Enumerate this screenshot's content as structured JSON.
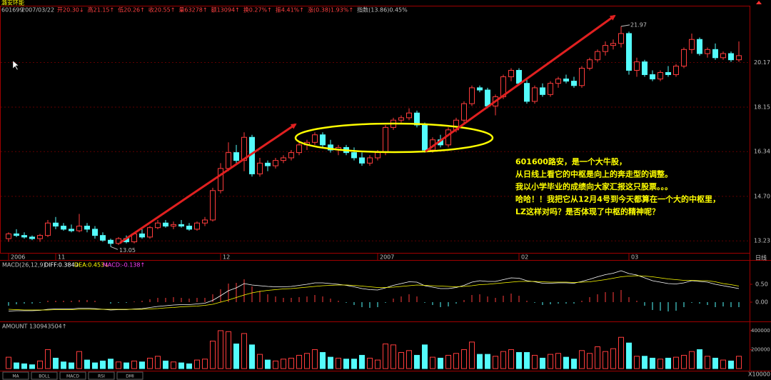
{
  "header": {
    "name": "潞安环能",
    "code": "601699",
    "date": "2007/03/22",
    "quote": [
      "开20.30↓",
      "高21.15↑",
      "低20.26↑",
      "收20.55↑",
      "量63278↑",
      "额13094↑",
      "换0.27%↑",
      "振4.41%↑",
      "涨(0.38)1.93%↑",
      "指数(13.86)0.45%"
    ]
  },
  "chart_data": {
    "type": "candlestick",
    "categories": [
      "2006",
      null,
      null,
      null,
      null,
      null,
      "11",
      null,
      null,
      null,
      null,
      null,
      null,
      null,
      null,
      null,
      null,
      null,
      null,
      null,
      null,
      null,
      null,
      null,
      null,
      null,
      null,
      "12",
      null,
      null,
      null,
      null,
      null,
      null,
      null,
      null,
      null,
      null,
      null,
      null,
      null,
      null,
      null,
      null,
      null,
      null,
      null,
      "2007",
      null,
      null,
      null,
      null,
      null,
      null,
      null,
      null,
      null,
      null,
      null,
      null,
      null,
      null,
      null,
      null,
      null,
      "02",
      null,
      null,
      null,
      null,
      null,
      null,
      null,
      null,
      null,
      null,
      null,
      null,
      null,
      "03",
      null,
      null,
      null,
      null,
      null,
      null,
      null,
      null,
      null,
      null,
      null,
      null,
      null,
      null
    ],
    "open": [
      13.3,
      13.45,
      13.4,
      13.35,
      13.3,
      13.4,
      13.8,
      13.7,
      13.6,
      13.55,
      13.7,
      13.6,
      13.4,
      13.25,
      13.15,
      13.3,
      13.2,
      13.45,
      13.35,
      13.65,
      13.8,
      13.7,
      13.75,
      13.7,
      13.6,
      13.8,
      13.9,
      14.9,
      15.7,
      16.3,
      16.0,
      16.9,
      15.5,
      15.9,
      15.8,
      16.0,
      16.1,
      16.3,
      16.6,
      16.7,
      17.0,
      16.6,
      16.4,
      16.5,
      16.3,
      16.1,
      15.9,
      16.1,
      16.3,
      17.3,
      17.6,
      17.7,
      17.9,
      17.4,
      16.4,
      16.8,
      16.6,
      17.2,
      17.6,
      18.3,
      19.0,
      18.9,
      18.2,
      18.6,
      19.5,
      19.8,
      19.2,
      18.4,
      19.0,
      18.7,
      19.2,
      19.4,
      19.3,
      19.1,
      19.9,
      20.3,
      20.7,
      21.0,
      21.1,
      21.6,
      19.8,
      20.2,
      19.6,
      19.4,
      19.7,
      19.6,
      20.0,
      20.8,
      21.3,
      20.6,
      20.8,
      20.4,
      20.6,
      20.3
    ],
    "high": [
      13.5,
      13.6,
      13.5,
      13.4,
      13.45,
      13.9,
      14.0,
      13.8,
      13.75,
      14.1,
      13.8,
      13.7,
      13.5,
      13.3,
      13.35,
      13.4,
      13.5,
      13.6,
      13.7,
      13.9,
      13.9,
      13.85,
      13.9,
      13.8,
      13.85,
      14.0,
      15.0,
      15.9,
      16.7,
      16.6,
      17.1,
      17.0,
      16.1,
      16.0,
      16.1,
      16.2,
      16.4,
      16.7,
      16.8,
      17.1,
      17.1,
      16.8,
      16.6,
      16.6,
      16.5,
      16.3,
      16.2,
      16.4,
      17.4,
      17.7,
      17.8,
      18.1,
      18.0,
      17.5,
      16.9,
      17.0,
      17.3,
      17.7,
      18.4,
      19.1,
      19.1,
      19.0,
      18.7,
      19.6,
      19.9,
      19.9,
      19.4,
      19.1,
      19.2,
      19.3,
      19.5,
      19.6,
      19.5,
      20.0,
      20.4,
      20.8,
      21.2,
      21.3,
      21.97,
      21.7,
      20.4,
      20.3,
      19.8,
      19.8,
      20.0,
      20.1,
      20.9,
      21.6,
      21.4,
      20.9,
      21.1,
      20.7,
      20.7,
      21.2
    ],
    "low": [
      13.2,
      13.35,
      13.3,
      13.25,
      13.2,
      13.35,
      13.6,
      13.55,
      13.5,
      13.5,
      13.5,
      13.3,
      13.2,
      13.05,
      13.1,
      13.15,
      13.15,
      13.3,
      13.3,
      13.6,
      13.65,
      13.6,
      13.65,
      13.55,
      13.55,
      13.7,
      13.85,
      14.8,
      15.6,
      15.9,
      15.6,
      15.4,
      15.4,
      15.6,
      15.7,
      15.9,
      16.0,
      16.2,
      16.4,
      16.6,
      16.5,
      16.3,
      16.2,
      16.2,
      16.0,
      15.8,
      15.8,
      16.0,
      16.2,
      17.2,
      17.5,
      17.6,
      17.3,
      16.3,
      16.3,
      16.5,
      16.5,
      17.1,
      17.5,
      18.2,
      18.8,
      18.1,
      17.8,
      18.5,
      19.3,
      19.1,
      18.3,
      18.3,
      18.6,
      18.6,
      19.0,
      19.2,
      19.0,
      19.0,
      19.8,
      20.2,
      20.5,
      20.8,
      20.9,
      19.6,
      19.5,
      19.5,
      19.3,
      19.3,
      19.5,
      19.5,
      19.9,
      20.6,
      20.5,
      20.4,
      20.3,
      20.3,
      20.2,
      20.2
    ],
    "close": [
      13.45,
      13.4,
      13.35,
      13.3,
      13.4,
      13.8,
      13.7,
      13.6,
      13.55,
      13.7,
      13.6,
      13.4,
      13.25,
      13.15,
      13.3,
      13.2,
      13.45,
      13.35,
      13.65,
      13.8,
      13.7,
      13.75,
      13.7,
      13.6,
      13.8,
      13.9,
      14.9,
      15.7,
      16.3,
      16.0,
      16.9,
      15.5,
      15.9,
      15.8,
      16.0,
      16.1,
      16.3,
      16.6,
      16.7,
      17.0,
      16.6,
      16.4,
      16.5,
      16.3,
      16.1,
      15.9,
      16.1,
      16.3,
      17.3,
      17.6,
      17.7,
      17.9,
      17.4,
      16.4,
      16.8,
      16.6,
      17.2,
      17.6,
      18.3,
      19.0,
      18.9,
      18.2,
      18.6,
      19.5,
      19.8,
      19.2,
      18.4,
      19.0,
      18.7,
      19.2,
      19.4,
      19.3,
      19.1,
      19.9,
      20.3,
      20.7,
      21.0,
      21.1,
      21.6,
      19.8,
      20.2,
      19.6,
      19.4,
      19.7,
      19.6,
      20.0,
      20.8,
      21.3,
      20.6,
      20.8,
      20.4,
      20.6,
      20.3,
      20.5
    ],
    "log_scale": true,
    "ylim": [
      12.86,
      23.03
    ],
    "yticks": [
      {
        "value": 13.23,
        "label": "13.23"
      },
      {
        "value": 14.7,
        "label": "14.70"
      },
      {
        "value": 16.34,
        "label": "16.34"
      },
      {
        "value": 18.15,
        "label": "18.15"
      },
      {
        "value": 20.17,
        "label": "20.17"
      }
    ],
    "grid": true,
    "up_color": "#ff3c3c",
    "down_color": "#54fcfc",
    "low_label": "13.05",
    "high_label": "21.97",
    "period": "日线",
    "note": [
      "601600路安，是一个大牛股，",
      "从日线上看它的中枢是向上的奔走型的调整。",
      "我以小学毕业的成绩向大家汇报这只股票。。。",
      "哈哈！！我把它从12月4号到今天都算在一个大的中枢里，",
      "LZ这样对吗？是否体现了中枢的精神呢？"
    ]
  },
  "macd": {
    "label": "MACD(26,12,9)",
    "diff_label": "DIFF:0.384↓",
    "dea_label": "DEA:0.453↓",
    "macd_label": "MACD:-0.138↑",
    "diff": [
      -0.25,
      -0.24,
      -0.24,
      -0.24,
      -0.23,
      -0.2,
      -0.19,
      -0.19,
      -0.19,
      -0.17,
      -0.17,
      -0.18,
      -0.2,
      -0.22,
      -0.21,
      -0.21,
      -0.19,
      -0.18,
      -0.15,
      -0.12,
      -0.1,
      -0.08,
      -0.07,
      -0.07,
      -0.05,
      -0.03,
      0.05,
      0.18,
      0.32,
      0.4,
      0.52,
      0.48,
      0.46,
      0.44,
      0.43,
      0.43,
      0.44,
      0.47,
      0.5,
      0.54,
      0.54,
      0.52,
      0.5,
      0.47,
      0.43,
      0.38,
      0.35,
      0.34,
      0.4,
      0.47,
      0.52,
      0.57,
      0.56,
      0.46,
      0.42,
      0.38,
      0.38,
      0.41,
      0.47,
      0.56,
      0.6,
      0.58,
      0.58,
      0.63,
      0.68,
      0.67,
      0.6,
      0.57,
      0.53,
      0.53,
      0.54,
      0.54,
      0.53,
      0.58,
      0.64,
      0.71,
      0.77,
      0.81,
      0.88,
      0.8,
      0.76,
      0.68,
      0.6,
      0.56,
      0.52,
      0.51,
      0.54,
      0.6,
      0.58,
      0.56,
      0.5,
      0.46,
      0.42,
      0.38
    ],
    "dea": [
      -0.2,
      -0.21,
      -0.22,
      -0.22,
      -0.22,
      -0.22,
      -0.21,
      -0.21,
      -0.21,
      -0.2,
      -0.2,
      -0.2,
      -0.2,
      -0.2,
      -0.2,
      -0.2,
      -0.2,
      -0.2,
      -0.19,
      -0.18,
      -0.16,
      -0.15,
      -0.13,
      -0.12,
      -0.11,
      -0.09,
      -0.06,
      0.0,
      0.06,
      0.13,
      0.2,
      0.26,
      0.3,
      0.33,
      0.35,
      0.37,
      0.38,
      0.4,
      0.42,
      0.44,
      0.46,
      0.47,
      0.48,
      0.48,
      0.47,
      0.45,
      0.43,
      0.41,
      0.41,
      0.42,
      0.44,
      0.46,
      0.48,
      0.47,
      0.46,
      0.45,
      0.44,
      0.43,
      0.44,
      0.46,
      0.49,
      0.5,
      0.52,
      0.54,
      0.56,
      0.58,
      0.58,
      0.58,
      0.57,
      0.56,
      0.56,
      0.56,
      0.55,
      0.56,
      0.57,
      0.6,
      0.63,
      0.67,
      0.71,
      0.73,
      0.74,
      0.73,
      0.71,
      0.68,
      0.65,
      0.63,
      0.61,
      0.61,
      0.6,
      0.6,
      0.57,
      0.52,
      0.49,
      0.45
    ],
    "values": [
      -0.1,
      -0.06,
      -0.04,
      -0.04,
      -0.02,
      0.04,
      0.04,
      0.04,
      0.04,
      0.06,
      0.06,
      0.04,
      0.0,
      -0.04,
      -0.02,
      -0.02,
      0.02,
      0.04,
      0.08,
      0.12,
      0.12,
      0.14,
      0.12,
      0.1,
      0.12,
      0.12,
      0.22,
      0.36,
      0.52,
      0.54,
      0.64,
      0.44,
      0.32,
      0.22,
      0.16,
      0.12,
      0.12,
      0.14,
      0.16,
      0.2,
      0.16,
      0.1,
      0.04,
      -0.02,
      -0.08,
      -0.14,
      -0.16,
      -0.14,
      -0.02,
      0.1,
      0.16,
      0.22,
      0.16,
      -0.02,
      -0.08,
      -0.14,
      -0.12,
      -0.04,
      0.06,
      0.2,
      0.22,
      0.16,
      0.12,
      0.18,
      0.24,
      0.18,
      0.04,
      -0.02,
      -0.08,
      -0.06,
      -0.04,
      -0.04,
      -0.04,
      0.04,
      0.14,
      0.22,
      0.28,
      0.28,
      0.34,
      0.14,
      0.04,
      -0.1,
      -0.22,
      -0.24,
      -0.26,
      -0.24,
      -0.14,
      -0.02,
      -0.04,
      -0.08,
      -0.14,
      -0.12,
      -0.14,
      -0.14
    ],
    "diff_color": "#ffffff",
    "dea_color": "#ffff00",
    "ylim": [
      -0.54,
      1.16
    ],
    "yticks": [
      {
        "value": 0,
        "label": "0.00"
      },
      {
        "value": 0.5,
        "label": "0.50"
      }
    ]
  },
  "amount": {
    "label": "AMOUNT 130943504↑",
    "values": [
      120000,
      60000,
      50000,
      40000,
      80000,
      200000,
      110000,
      70000,
      60000,
      180000,
      90000,
      60000,
      80000,
      100000,
      70000,
      60000,
      80000,
      70000,
      110000,
      130000,
      80000,
      70000,
      60000,
      50000,
      90000,
      100000,
      290000,
      400000,
      390000,
      260000,
      370000,
      250000,
      150000,
      90000,
      80000,
      100000,
      110000,
      140000,
      160000,
      200000,
      170000,
      120000,
      110000,
      100000,
      100000,
      140000,
      110000,
      90000,
      260000,
      250000,
      170000,
      190000,
      140000,
      250000,
      120000,
      110000,
      140000,
      160000,
      200000,
      280000,
      150000,
      150000,
      130000,
      180000,
      200000,
      170000,
      170000,
      140000,
      110000,
      150000,
      160000,
      120000,
      100000,
      190000,
      160000,
      230000,
      180000,
      210000,
      330000,
      270000,
      130000,
      130000,
      110000,
      100000,
      110000,
      120000,
      140000,
      180000,
      200000,
      130000,
      110000,
      90000,
      80000,
      130000
    ],
    "ylim": [
      0,
      460000
    ],
    "yticks": [
      200000,
      400000
    ],
    "unit": "X10000"
  },
  "tabs": [
    "MA",
    "BOLL",
    "MACD",
    "RSI",
    "DMI"
  ]
}
